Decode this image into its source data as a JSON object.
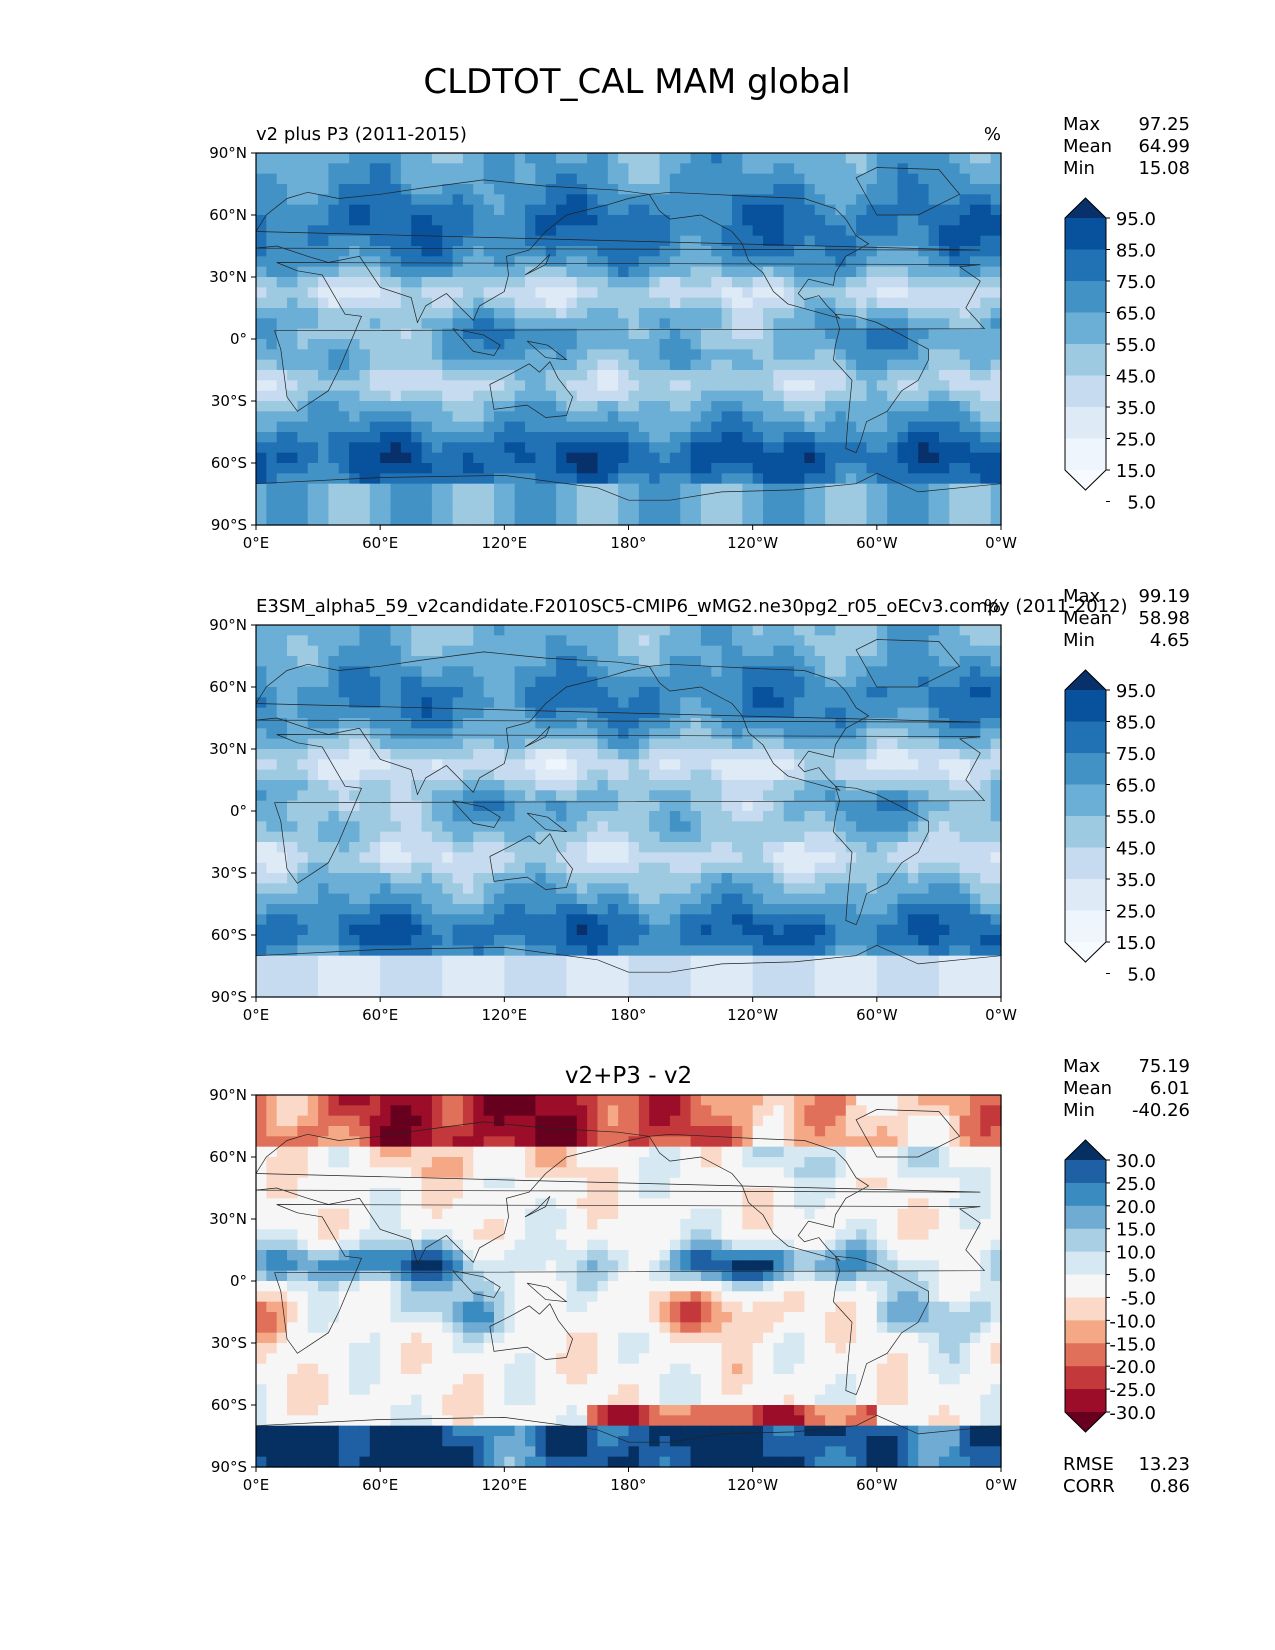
{
  "figure": {
    "title": "CLDTOT_CAL MAM global"
  },
  "chart_data": [
    {
      "type": "heatmap",
      "title": "v2 plus P3 (2011-2015)",
      "units": "%",
      "stats": {
        "max_label": "Max",
        "max": "97.25",
        "mean_label": "Mean",
        "mean": "64.99",
        "min_label": "Min",
        "min": "15.08"
      },
      "colorbar": {
        "levels": [
          "95.0",
          "85.0",
          "75.0",
          "65.0",
          "55.0",
          "45.0",
          "35.0",
          "25.0",
          "15.0",
          "5.0"
        ],
        "colors": [
          "#08306b",
          "#08519c",
          "#2171b5",
          "#4292c6",
          "#6baed6",
          "#9ecae1",
          "#c6dbef",
          "#deebf7",
          "#eef5fc",
          "#f7fbff"
        ]
      },
      "xticks": [
        "0°E",
        "60°E",
        "120°E",
        "180°",
        "120°W",
        "60°W",
        "0°W"
      ],
      "yticks": [
        "90°N",
        "60°N",
        "30°N",
        "0°",
        "30°S",
        "60°S",
        "90°S"
      ],
      "xlim": [
        0,
        360
      ],
      "ylim": [
        -90,
        90
      ]
    },
    {
      "type": "heatmap",
      "title": "E3SM_alpha5_59_v2candidate.F2010SC5-CMIP6_wMG2.ne30pg2_r05_oECv3.compy (2011-2012)",
      "units": "%",
      "stats": {
        "max_label": "Max",
        "max": "99.19",
        "mean_label": "Mean",
        "mean": "58.98",
        "min_label": "Min",
        "min": "4.65"
      },
      "colorbar": {
        "levels": [
          "95.0",
          "85.0",
          "75.0",
          "65.0",
          "55.0",
          "45.0",
          "35.0",
          "25.0",
          "15.0",
          "5.0"
        ],
        "colors": [
          "#08306b",
          "#08519c",
          "#2171b5",
          "#4292c6",
          "#6baed6",
          "#9ecae1",
          "#c6dbef",
          "#deebf7",
          "#eef5fc",
          "#f7fbff"
        ]
      },
      "xticks": [
        "0°E",
        "60°E",
        "120°E",
        "180°",
        "120°W",
        "60°W",
        "0°W"
      ],
      "yticks": [
        "90°N",
        "60°N",
        "30°N",
        "0°",
        "30°S",
        "60°S",
        "90°S"
      ],
      "xlim": [
        0,
        360
      ],
      "ylim": [
        -90,
        90
      ]
    },
    {
      "type": "heatmap",
      "title": "v2+P3 - v2",
      "units": "",
      "stats": {
        "max_label": "Max",
        "max": "75.19",
        "mean_label": "Mean",
        "mean": "6.01",
        "min_label": "Min",
        "min": "-40.26"
      },
      "metrics": {
        "rmse_label": "RMSE",
        "rmse": "13.23",
        "corr_label": "CORR",
        "corr": "0.86"
      },
      "colorbar": {
        "levels": [
          "30.0",
          "25.0",
          "20.0",
          "15.0",
          "10.0",
          "5.0",
          "-5.0",
          "-10.0",
          "-15.0",
          "-20.0",
          "-25.0",
          "-30.0"
        ],
        "colors": [
          "#053061",
          "#1f5fa3",
          "#3a8cc0",
          "#6fabd2",
          "#a9cfe5",
          "#d6e8f2",
          "#f6f6f6",
          "#fbd9c8",
          "#f4a886",
          "#e07059",
          "#c3383b",
          "#9b0d28",
          "#67001f"
        ]
      },
      "xticks": [
        "0°E",
        "60°E",
        "120°E",
        "180°",
        "120°W",
        "60°W",
        "0°W"
      ],
      "yticks": [
        "90°N",
        "60°N",
        "30°N",
        "0°",
        "30°S",
        "60°S",
        "90°S"
      ],
      "xlim": [
        0,
        360
      ],
      "ylim": [
        -90,
        90
      ]
    }
  ]
}
